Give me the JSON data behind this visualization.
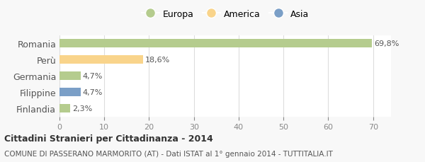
{
  "categories": [
    "Romania",
    "Perù",
    "Germania",
    "Filippine",
    "Finlandia"
  ],
  "values": [
    69.8,
    18.6,
    4.7,
    4.7,
    2.3
  ],
  "labels": [
    "69,8%",
    "18,6%",
    "4,7%",
    "4,7%",
    "2,3%"
  ],
  "colors": [
    "#b5cc8e",
    "#f9d48b",
    "#b5cc8e",
    "#7b9fc7",
    "#b5cc8e"
  ],
  "legend": [
    {
      "label": "Europa",
      "color": "#b5cc8e"
    },
    {
      "label": "America",
      "color": "#f9d48b"
    },
    {
      "label": "Asia",
      "color": "#7b9fc7"
    }
  ],
  "xlim": [
    0,
    74
  ],
  "xticks": [
    0,
    10,
    20,
    30,
    40,
    50,
    60,
    70
  ],
  "title": "Cittadini Stranieri per Cittadinanza - 2014",
  "subtitle": "COMUNE DI PASSERANO MARMORITO (AT) - Dati ISTAT al 1° gennaio 2014 - TUTTITALIA.IT",
  "background_color": "#f8f8f8",
  "plot_background": "#ffffff",
  "grid_color": "#dddddd"
}
